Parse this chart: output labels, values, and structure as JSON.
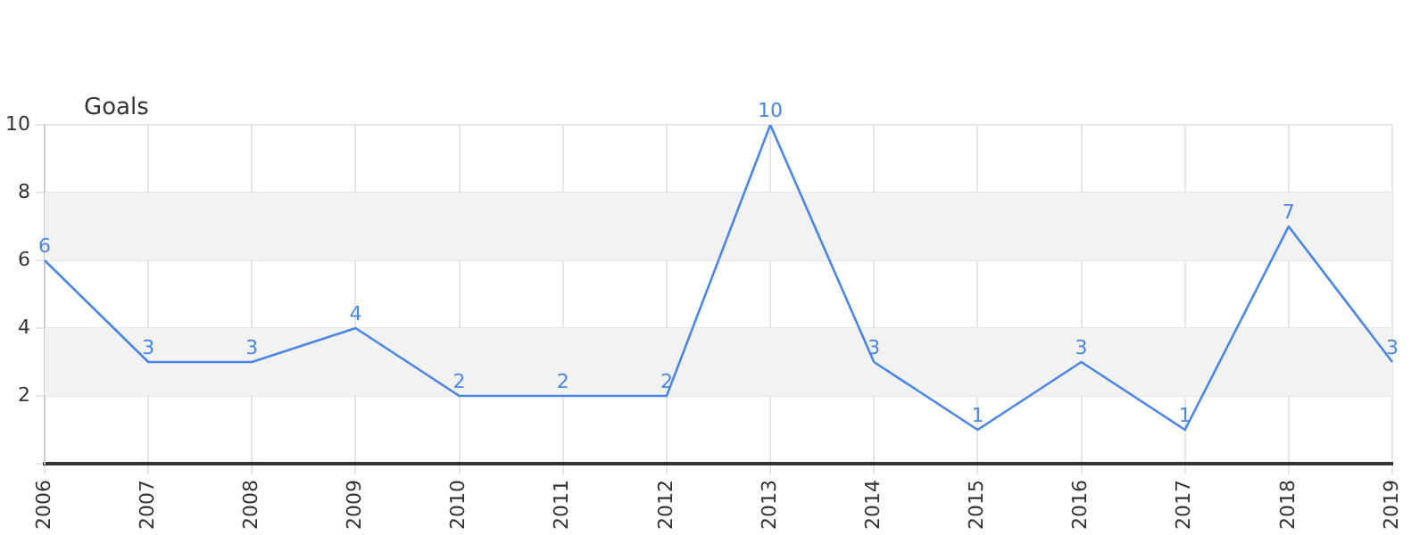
{
  "chart_data": {
    "type": "line",
    "ylabel": "Goals",
    "categories": [
      "2006",
      "2007",
      "2008",
      "2009",
      "2010",
      "2011",
      "2012",
      "2013",
      "2014",
      "2015",
      "2016",
      "2017",
      "2018",
      "2019"
    ],
    "series": [
      {
        "color": "#4a86e8",
        "values": [
          6,
          3,
          3,
          4,
          2,
          2,
          2,
          10,
          3,
          1,
          3,
          1,
          7,
          3
        ]
      }
    ],
    "ylim": [
      0,
      10
    ],
    "yticks": [
      {
        "value": 0,
        "label": null
      },
      2,
      4,
      6,
      8,
      10
    ],
    "bands": [
      {
        "axis": "y",
        "from": 2,
        "to": 4,
        "color": "#f2f2f2"
      },
      {
        "axis": "y",
        "from": 6,
        "to": 8,
        "color": "#f2f2f2"
      }
    ],
    "grid": true,
    "data_labels": true,
    "marker": "none",
    "line_style": "solid",
    "legend": false
  }
}
